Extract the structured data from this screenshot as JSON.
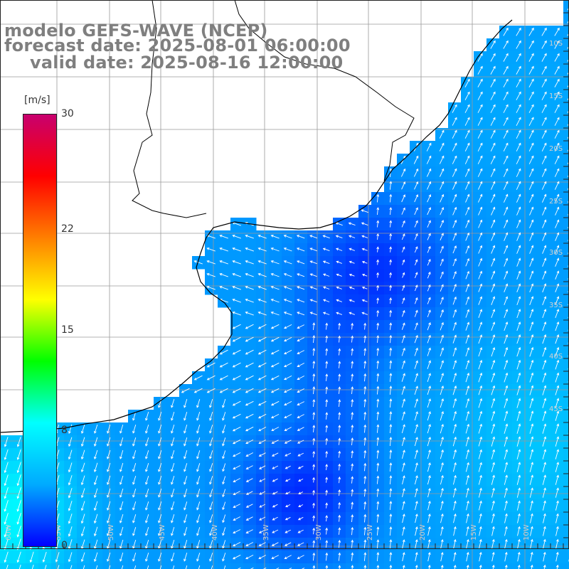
{
  "title": {
    "model": "modelo GEFS-WAVE (NCEP)",
    "forecast": "forecast date: 2025-08-01 06:00:00",
    "valid": "valid date: 2025-08-16 12:00:00"
  },
  "colorbar": {
    "unit": "[m/s]",
    "ticks": [
      {
        "label": "30",
        "value": 30
      },
      {
        "label": "22",
        "value": 22
      },
      {
        "label": "15",
        "value": 15
      },
      {
        "label": "8",
        "value": 8
      },
      {
        "label": "0",
        "value": 0
      }
    ],
    "stops": [
      "#0000ff",
      "#00aaff",
      "#00ffff",
      "#00ff00",
      "#ffff00",
      "#ff7f00",
      "#ff0000",
      "#c8006e"
    ]
  },
  "map_labels": {
    "lon_bottom": [
      "60W",
      "55W",
      "50W",
      "45W",
      "40W",
      "35W",
      "30W",
      "25W",
      "20W",
      "15W",
      "10W"
    ],
    "lat_right": [
      "10S",
      "15S",
      "20S",
      "25S",
      "30S",
      "35S",
      "40S",
      "45S"
    ]
  },
  "colors": {
    "ocean_dark": "#1414ff",
    "ocean_light": "#14a0ff",
    "title_gray": "#7f7f7f",
    "grid": "#9a9a9a",
    "coast": "#000000"
  }
}
